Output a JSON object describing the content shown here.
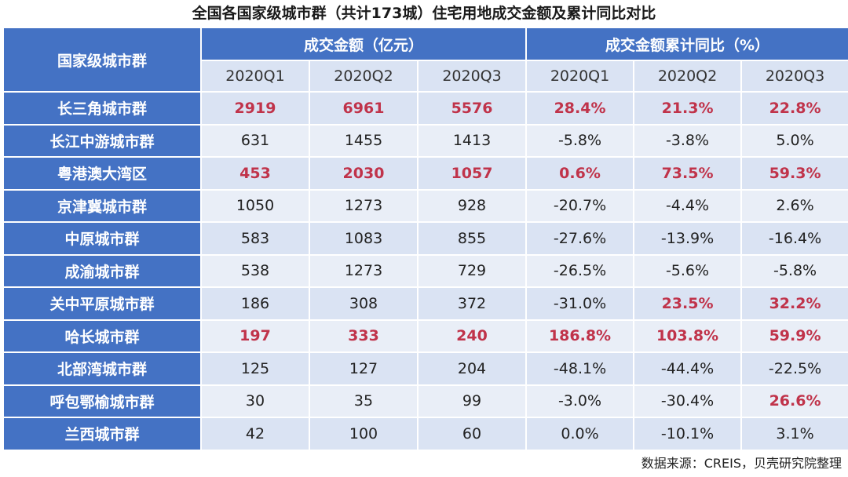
{
  "title": "全国各国家级城市群（共计173城）住宅用地成交金额及累计同比对比",
  "header": {
    "row_label": "国家级城市群",
    "group1": "成交金额（亿元）",
    "group2": "成交金额累计同比（%）",
    "quarters": [
      "2020Q1",
      "2020Q2",
      "2020Q3",
      "2020Q1",
      "2020Q2",
      "2020Q3"
    ]
  },
  "rows": [
    {
      "name": "长三角城市群",
      "values": [
        "2919",
        "6961",
        "5576",
        "28.4%",
        "21.3%",
        "22.8%"
      ],
      "highlight": [
        true,
        true,
        true,
        true,
        true,
        true
      ]
    },
    {
      "name": "长江中游城市群",
      "values": [
        "631",
        "1455",
        "1413",
        "-5.8%",
        "-3.8%",
        "5.0%"
      ],
      "highlight": [
        false,
        false,
        false,
        false,
        false,
        false
      ]
    },
    {
      "name": "粤港澳大湾区",
      "values": [
        "453",
        "2030",
        "1057",
        "0.6%",
        "73.5%",
        "59.3%"
      ],
      "highlight": [
        true,
        true,
        true,
        true,
        true,
        true
      ]
    },
    {
      "name": "京津冀城市群",
      "values": [
        "1050",
        "1273",
        "928",
        "-20.7%",
        "-4.4%",
        "2.6%"
      ],
      "highlight": [
        false,
        false,
        false,
        false,
        false,
        false
      ]
    },
    {
      "name": "中原城市群",
      "values": [
        "583",
        "1083",
        "855",
        "-27.6%",
        "-13.9%",
        "-16.4%"
      ],
      "highlight": [
        false,
        false,
        false,
        false,
        false,
        false
      ]
    },
    {
      "name": "成渝城市群",
      "values": [
        "538",
        "1273",
        "729",
        "-26.5%",
        "-5.6%",
        "-5.8%"
      ],
      "highlight": [
        false,
        false,
        false,
        false,
        false,
        false
      ]
    },
    {
      "name": "关中平原城市群",
      "values": [
        "186",
        "308",
        "372",
        "-31.0%",
        "23.5%",
        "32.2%"
      ],
      "highlight": [
        false,
        false,
        false,
        false,
        true,
        true
      ]
    },
    {
      "name": "哈长城市群",
      "values": [
        "197",
        "333",
        "240",
        "186.8%",
        "103.8%",
        "59.9%"
      ],
      "highlight": [
        true,
        true,
        true,
        true,
        true,
        true
      ]
    },
    {
      "name": "北部湾城市群",
      "values": [
        "125",
        "127",
        "204",
        "-48.1%",
        "-44.4%",
        "-22.5%"
      ],
      "highlight": [
        false,
        false,
        false,
        false,
        false,
        false
      ]
    },
    {
      "name": "呼包鄂榆城市群",
      "values": [
        "30",
        "35",
        "99",
        "-3.0%",
        "-30.4%",
        "26.6%"
      ],
      "highlight": [
        false,
        false,
        false,
        false,
        false,
        true
      ]
    },
    {
      "name": "兰西城市群",
      "values": [
        "42",
        "100",
        "60",
        "0.0%",
        "-10.1%",
        "3.1%"
      ],
      "highlight": [
        false,
        false,
        false,
        false,
        false,
        false
      ]
    }
  ],
  "colors": {
    "header_blue": "#4472c4",
    "cell_light": "#dae3f3",
    "cell_lighter": "#e9eef7",
    "highlight_red": "#c0334a"
  },
  "source": "数据来源：CREIS，贝壳研究院整理"
}
